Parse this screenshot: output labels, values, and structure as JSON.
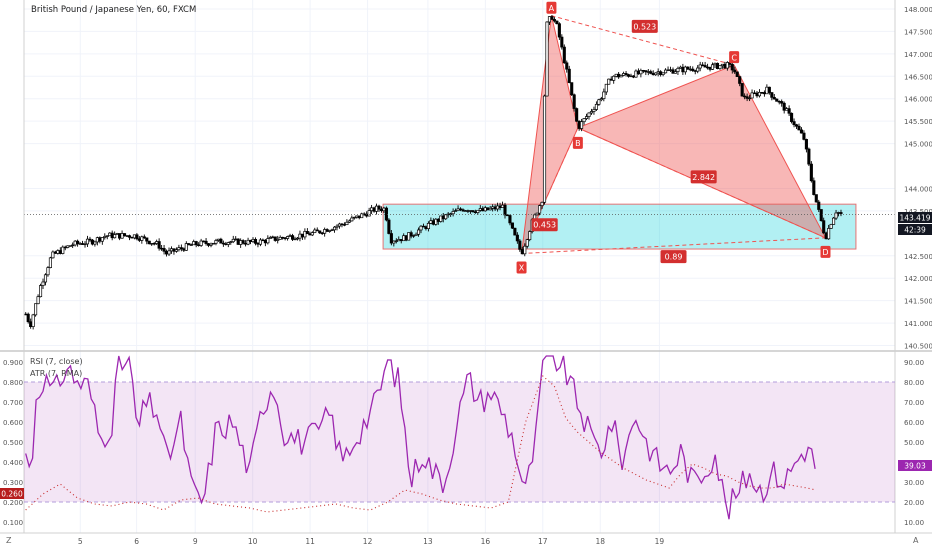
{
  "chart": {
    "title": "British Pound / Japanese Yen, 60, FXCM",
    "price_tag": "143.419",
    "countdown": "42:39",
    "y_ticks": [
      "148.000",
      "147.500",
      "147.000",
      "146.500",
      "146.000",
      "145.500",
      "145.000",
      "144.000",
      "143.500",
      "142.500",
      "142.000",
      "141.500",
      "141.000",
      "140.500"
    ],
    "pattern": {
      "points": [
        {
          "label": "X",
          "time": 12.63,
          "price": 142.55
        },
        {
          "label": "A",
          "time": 13.15,
          "price": 147.85
        },
        {
          "label": "B",
          "time": 13.61,
          "price": 145.35
        },
        {
          "label": "C",
          "time": 16.33,
          "price": 146.75
        },
        {
          "label": "D",
          "time": 17.92,
          "price": 142.9
        }
      ],
      "ratios": [
        "0.453",
        "0.523",
        "2.842",
        "0.89"
      ]
    },
    "range_box": {
      "price_top": 143.65,
      "price_bottom": 142.65
    }
  },
  "indicators": {
    "rsi_label": "RSI (7, close)",
    "atr_label": "ATR (7, RMA)",
    "left_ticks": [
      "0.900",
      "0.800",
      "0.700",
      "0.600",
      "0.500",
      "0.400",
      "0.300",
      "0.200",
      "0.100"
    ],
    "right_ticks": [
      "90.00",
      "80.00",
      "70.00",
      "60.00",
      "50.00",
      "40.00",
      "30.00",
      "20.00",
      "10.00"
    ],
    "rsi_value": "39.03",
    "atr_value": "0.260",
    "overbought": 80,
    "oversold": 20
  },
  "time_axis": {
    "labels": [
      "5",
      "6",
      "9",
      "10",
      "11",
      "12",
      "13",
      "16",
      "17",
      "18",
      "19"
    ],
    "left_marker": "Z",
    "right_marker": "A"
  },
  "chart_data": [
    {
      "type": "candlestick",
      "title": "British Pound / Japanese Yen, 60, FXCM",
      "ylim": [
        140.4,
        148.2
      ],
      "x_ticks": [
        "5",
        "6",
        "9",
        "10",
        "11",
        "12",
        "13",
        "16",
        "17",
        "18",
        "19"
      ],
      "anchors": [
        [
          4.0,
          141.2
        ],
        [
          4.08,
          140.95
        ],
        [
          4.25,
          141.8
        ],
        [
          4.45,
          142.5
        ],
        [
          4.8,
          142.75
        ],
        [
          5.15,
          142.82
        ],
        [
          5.4,
          142.95
        ],
        [
          5.9,
          142.95
        ],
        [
          6.3,
          142.75
        ],
        [
          6.45,
          142.55
        ],
        [
          6.9,
          142.75
        ],
        [
          7.4,
          142.82
        ],
        [
          8.0,
          142.8
        ],
        [
          8.45,
          142.9
        ],
        [
          9.0,
          143.0
        ],
        [
          9.5,
          143.2
        ],
        [
          10.1,
          143.55
        ],
        [
          10.25,
          143.55
        ],
        [
          10.35,
          142.85
        ],
        [
          10.6,
          142.9
        ],
        [
          11.1,
          143.25
        ],
        [
          11.6,
          143.55
        ],
        [
          11.95,
          143.5
        ],
        [
          12.3,
          143.6
        ],
        [
          12.63,
          142.55
        ],
        [
          12.8,
          143.2
        ],
        [
          13.0,
          143.8
        ],
        [
          13.05,
          147.6
        ],
        [
          13.15,
          147.85
        ],
        [
          13.25,
          147.6
        ],
        [
          13.45,
          146.4
        ],
        [
          13.61,
          145.35
        ],
        [
          14.0,
          146.0
        ],
        [
          14.2,
          146.5
        ],
        [
          16.2,
          146.75
        ],
        [
          16.33,
          146.65
        ],
        [
          16.5,
          146.0
        ],
        [
          16.9,
          146.2
        ],
        [
          17.2,
          145.8
        ],
        [
          17.35,
          145.5
        ],
        [
          17.55,
          145.1
        ],
        [
          17.7,
          144.0
        ],
        [
          17.92,
          142.9
        ],
        [
          18.0,
          143.2
        ],
        [
          18.1,
          143.5
        ],
        [
          18.2,
          143.42
        ]
      ],
      "last_price": 143.419
    },
    {
      "type": "line",
      "title": "RSI (7, close)",
      "ylim": [
        5,
        95
      ],
      "guides": [
        80,
        20
      ],
      "series": [
        {
          "name": "RSI (7, close)",
          "anchors": [
            [
              4.0,
              45
            ],
            [
              4.1,
              30
            ],
            [
              4.15,
              70
            ],
            [
              4.3,
              82
            ],
            [
              4.5,
              74
            ],
            [
              4.7,
              88
            ],
            [
              4.9,
              80
            ],
            [
              5.1,
              78
            ],
            [
              5.3,
              50
            ],
            [
              5.5,
              60
            ],
            [
              5.6,
              88
            ],
            [
              5.8,
              90
            ],
            [
              5.95,
              55
            ],
            [
              6.1,
              70
            ],
            [
              6.3,
              65
            ],
            [
              6.45,
              40
            ],
            [
              6.7,
              60
            ],
            [
              6.9,
              25
            ],
            [
              7.1,
              20
            ],
            [
              7.3,
              55
            ],
            [
              7.6,
              60
            ],
            [
              7.9,
              35
            ],
            [
              8.1,
              65
            ],
            [
              8.3,
              80
            ],
            [
              8.5,
              55
            ],
            [
              8.8,
              50
            ],
            [
              9.1,
              55
            ],
            [
              9.3,
              65
            ],
            [
              9.5,
              40
            ],
            [
              9.8,
              55
            ],
            [
              10.1,
              70
            ],
            [
              10.3,
              90
            ],
            [
              10.5,
              80
            ],
            [
              10.7,
              30
            ],
            [
              10.9,
              45
            ],
            [
              11.1,
              35
            ],
            [
              11.3,
              30
            ],
            [
              11.5,
              60
            ],
            [
              11.7,
              82
            ],
            [
              11.9,
              70
            ],
            [
              12.1,
              75
            ],
            [
              12.3,
              65
            ],
            [
              12.5,
              50
            ],
            [
              12.6,
              35
            ],
            [
              12.7,
              25
            ],
            [
              12.9,
              55
            ],
            [
              13.0,
              90
            ],
            [
              13.2,
              92
            ],
            [
              13.4,
              85
            ],
            [
              13.6,
              70
            ],
            [
              13.8,
              55
            ],
            [
              14.0,
              45
            ],
            [
              14.2,
              60
            ],
            [
              14.4,
              40
            ],
            [
              14.6,
              65
            ],
            [
              14.8,
              50
            ],
            [
              15.0,
              40
            ],
            [
              15.2,
              35
            ],
            [
              15.4,
              45
            ],
            [
              15.6,
              30
            ],
            [
              15.8,
              35
            ],
            [
              16.0,
              45
            ],
            [
              16.2,
              15
            ],
            [
              16.4,
              25
            ],
            [
              16.6,
              35
            ],
            [
              16.8,
              25
            ],
            [
              17.0,
              35
            ],
            [
              17.2,
              30
            ],
            [
              17.4,
              40
            ],
            [
              17.6,
              48
            ],
            [
              17.75,
              38
            ]
          ]
        }
      ]
    },
    {
      "type": "line",
      "title": "ATR (7, RMA)",
      "ylim": [
        0.05,
        0.95
      ],
      "series": [
        {
          "name": "ATR (7, RMA)",
          "anchors": [
            [
              4.0,
              0.16
            ],
            [
              4.3,
              0.24
            ],
            [
              4.6,
              0.29
            ],
            [
              4.9,
              0.22
            ],
            [
              5.2,
              0.19
            ],
            [
              5.5,
              0.18
            ],
            [
              5.8,
              0.2
            ],
            [
              6.1,
              0.19
            ],
            [
              6.4,
              0.16
            ],
            [
              6.7,
              0.21
            ],
            [
              7.0,
              0.22
            ],
            [
              7.3,
              0.19
            ],
            [
              7.6,
              0.18
            ],
            [
              7.9,
              0.17
            ],
            [
              8.2,
              0.15
            ],
            [
              8.5,
              0.16
            ],
            [
              8.8,
              0.17
            ],
            [
              9.1,
              0.18
            ],
            [
              9.4,
              0.19
            ],
            [
              9.7,
              0.17
            ],
            [
              10.0,
              0.16
            ],
            [
              10.3,
              0.2
            ],
            [
              10.6,
              0.26
            ],
            [
              10.9,
              0.24
            ],
            [
              11.2,
              0.21
            ],
            [
              11.5,
              0.19
            ],
            [
              11.8,
              0.18
            ],
            [
              12.1,
              0.17
            ],
            [
              12.4,
              0.2
            ],
            [
              12.7,
              0.6
            ],
            [
              13.0,
              0.83
            ],
            [
              13.2,
              0.78
            ],
            [
              13.4,
              0.62
            ],
            [
              13.6,
              0.55
            ],
            [
              13.8,
              0.5
            ],
            [
              14.0,
              0.45
            ],
            [
              14.2,
              0.41
            ],
            [
              14.4,
              0.37
            ],
            [
              14.6,
              0.34
            ],
            [
              14.8,
              0.31
            ],
            [
              15.0,
              0.29
            ],
            [
              15.2,
              0.27
            ],
            [
              15.4,
              0.34
            ],
            [
              15.6,
              0.39
            ],
            [
              15.8,
              0.37
            ],
            [
              16.0,
              0.34
            ],
            [
              16.2,
              0.33
            ],
            [
              16.4,
              0.3
            ],
            [
              16.6,
              0.28
            ],
            [
              16.8,
              0.27
            ],
            [
              17.0,
              0.27
            ],
            [
              17.2,
              0.29
            ],
            [
              17.4,
              0.28
            ],
            [
              17.6,
              0.27
            ],
            [
              17.75,
              0.26
            ]
          ]
        }
      ]
    }
  ]
}
